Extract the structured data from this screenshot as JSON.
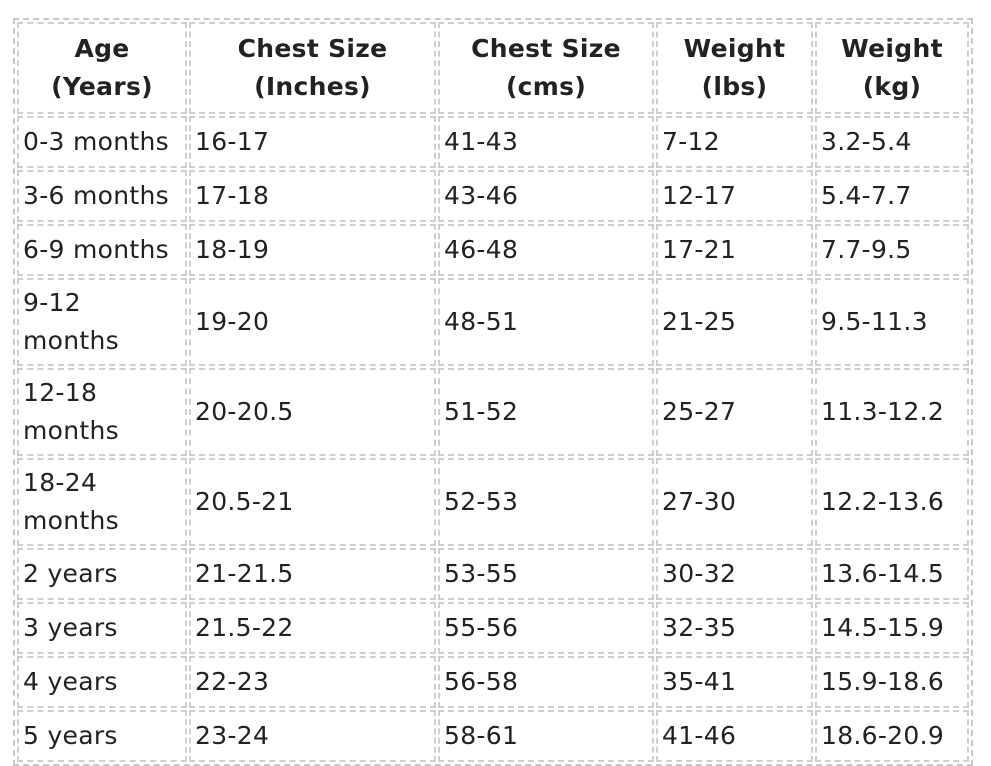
{
  "table": {
    "header": [
      "Age\n(Years)",
      "Chest Size\n(Inches)",
      "Chest Size\n(cms)",
      "Weight\n(lbs)",
      "Weight\n(kg)"
    ],
    "rows": [
      [
        "0-3 months",
        "16-17",
        "41-43",
        "7-12",
        "3.2-5.4"
      ],
      [
        "3-6 months",
        "17-18",
        "43-46",
        "12-17",
        "5.4-7.7"
      ],
      [
        "6-9 months",
        "18-19",
        "46-48",
        "17-21",
        "7.7-9.5"
      ],
      [
        "9-12 months",
        "19-20",
        "48-51",
        "21-25",
        "9.5-11.3"
      ],
      [
        "12-18 months",
        "20-20.5",
        "51-52",
        "25-27",
        "11.3-12.2"
      ],
      [
        "18-24 months",
        "20.5-21",
        "52-53",
        "27-30",
        "12.2-13.6"
      ],
      [
        "2 years",
        "21-21.5",
        "53-55",
        "30-32",
        "13.6-14.5"
      ],
      [
        "3 years",
        "21.5-22",
        "55-56",
        "32-35",
        "14.5-15.9"
      ],
      [
        "4 years",
        "22-23",
        "56-58",
        "35-41",
        "15.9-18.6"
      ],
      [
        "5 years",
        "23-24",
        "58-61",
        "41-46",
        "18.6-20.9"
      ]
    ]
  }
}
